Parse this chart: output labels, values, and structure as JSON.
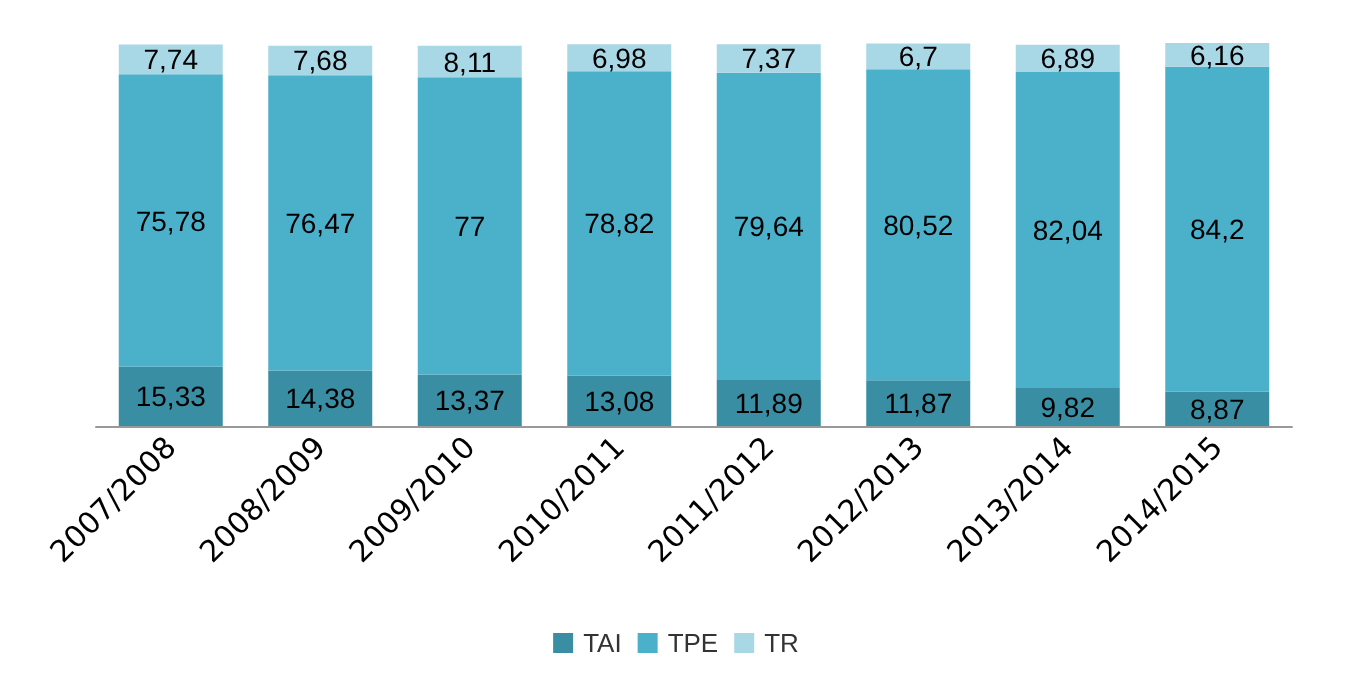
{
  "chart_data": {
    "type": "bar",
    "stacked": true,
    "legend": "bottom",
    "tick_labels": "x",
    "categories": [
      "2007/2008",
      "2008/2009",
      "2009/2010",
      "2010/2011",
      "2011/2012",
      "2012/2013",
      "2013/2014",
      "2014/2015"
    ],
    "series": [
      {
        "name": "TAI",
        "color": "#3a8ea3",
        "values": [
          15.33,
          14.38,
          13.37,
          13.08,
          11.89,
          11.87,
          9.82,
          8.87
        ],
        "value_labels": [
          "15,33",
          "14,38",
          "13,37",
          "13,08",
          "11,89",
          "11,87",
          "9,82",
          "8,87"
        ]
      },
      {
        "name": "TPE",
        "color": "#4bb0ca",
        "values": [
          75.78,
          76.47,
          77,
          78.82,
          79.64,
          80.52,
          82.04,
          84.2
        ],
        "value_labels": [
          "75,78",
          "76,47",
          "77",
          "78,82",
          "79,64",
          "80,52",
          "82,04",
          "84,2"
        ]
      },
      {
        "name": "TR",
        "color": "#a8d7e5",
        "values": [
          7.74,
          7.68,
          8.11,
          6.98,
          7.37,
          6.7,
          6.89,
          6.16
        ],
        "value_labels": [
          "7,74",
          "7,68",
          "8,11",
          "6,98",
          "7,37",
          "6,7",
          "6,89",
          "6,16"
        ]
      }
    ]
  }
}
